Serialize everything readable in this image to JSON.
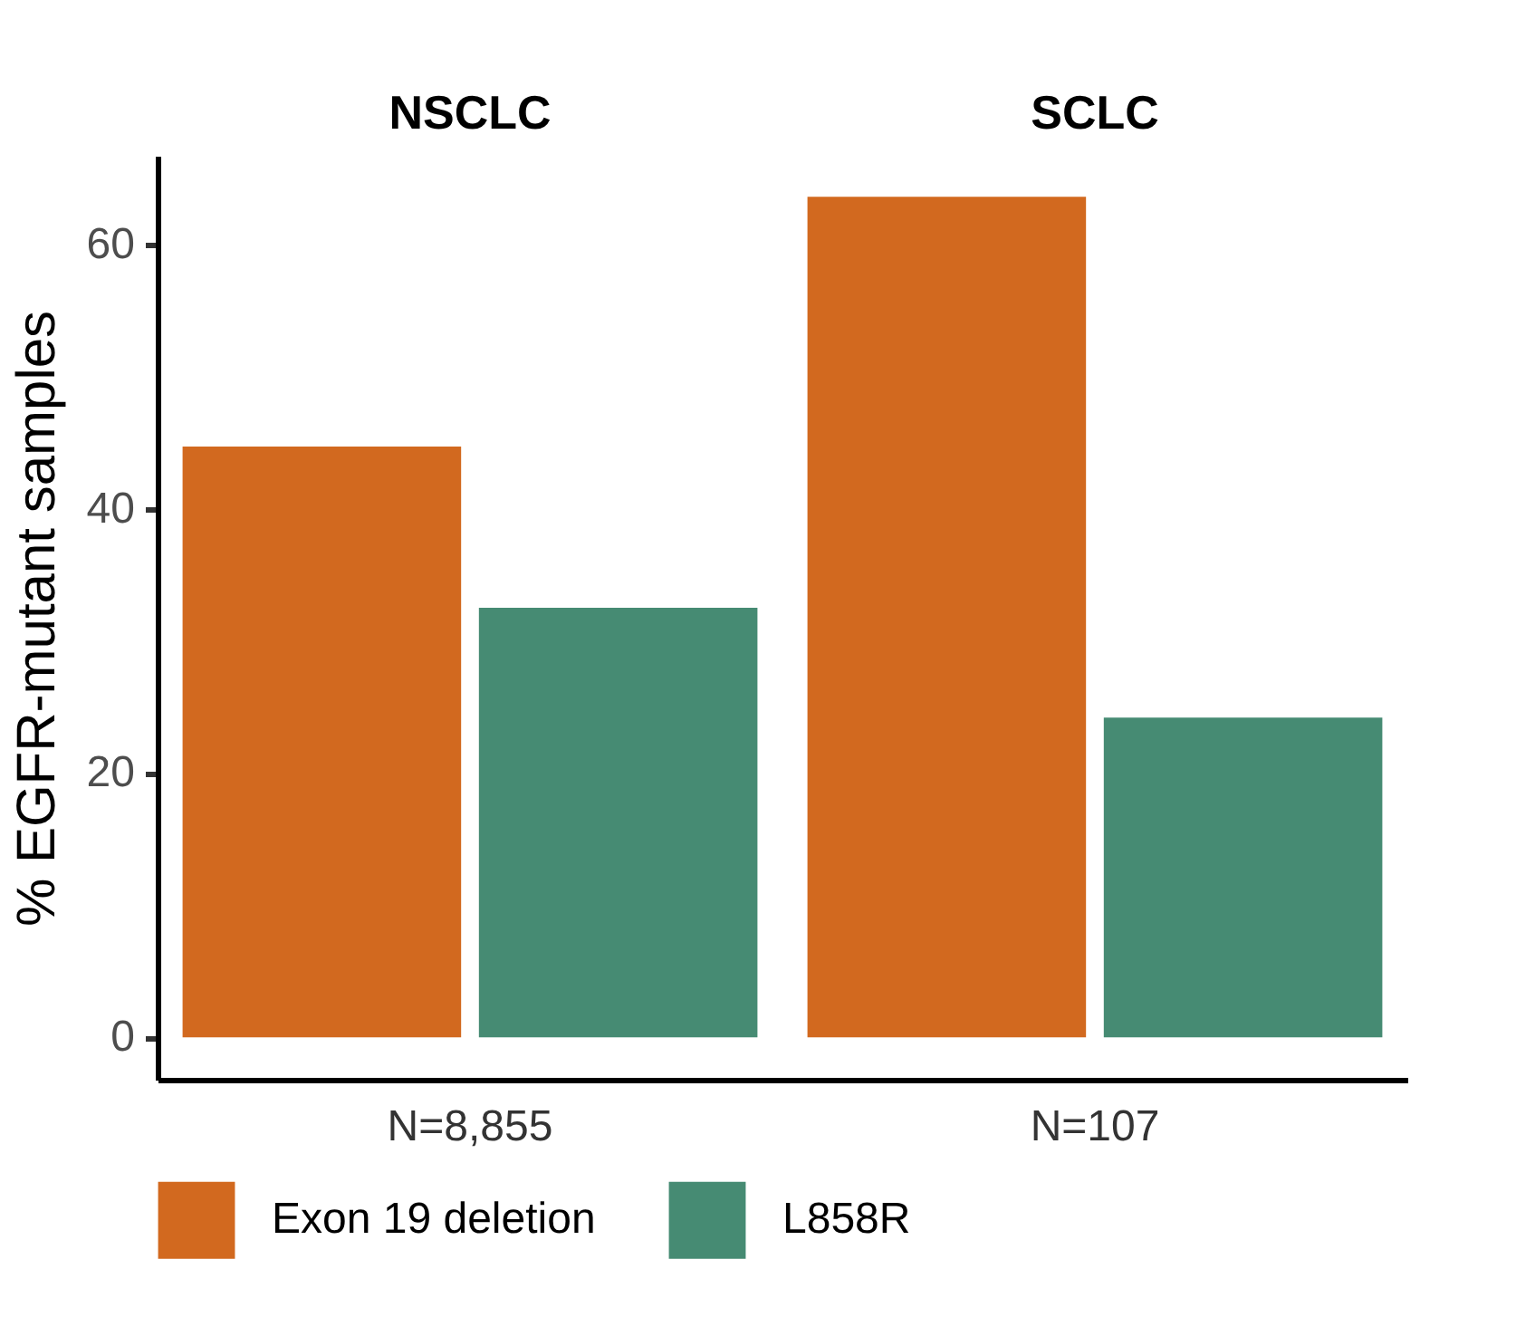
{
  "chart_data": {
    "type": "bar",
    "ylabel": "% EGFR-mutant samples",
    "categories": [
      "N=8,855",
      "N=107"
    ],
    "series": [
      {
        "name": "Exon 19 deletion",
        "color": "#d2691f",
        "values": [
          44.7,
          63.6
        ]
      },
      {
        "name": "L858R",
        "color": "#468b73",
        "values": [
          32.5,
          24.2
        ]
      }
    ],
    "annotations": [
      "NSCLC",
      "SCLC"
    ],
    "ylim": [
      -3.2,
      66.7
    ],
    "yticks": [
      0,
      20,
      40,
      60
    ],
    "grid": false,
    "legend": "bottom"
  }
}
